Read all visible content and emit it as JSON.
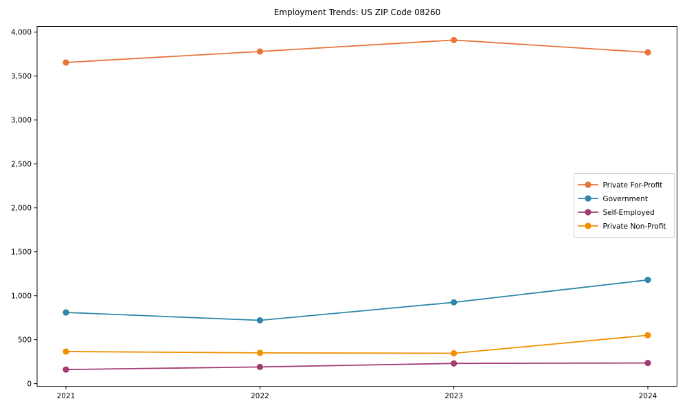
{
  "title": "Employment Trends: US ZIP Code 08260",
  "chart_data": {
    "type": "line",
    "title": "Employment Trends: US ZIP Code 08260",
    "xlabel": "",
    "ylabel": "",
    "categories": [
      "2021",
      "2022",
      "2023",
      "2024"
    ],
    "series": [
      {
        "name": "Private For-Profit",
        "color": "#e8743b",
        "values": [
          3655,
          3780,
          3910,
          3770
        ]
      },
      {
        "name": "Government",
        "color": "#2e86ab",
        "values": [
          810,
          720,
          925,
          1180
        ]
      },
      {
        "name": "Self-Employed",
        "color": "#a23b72",
        "values": [
          160,
          190,
          230,
          235
        ]
      },
      {
        "name": "Private Non-Profit",
        "color": "#f18f01",
        "values": [
          365,
          350,
          345,
          550
        ]
      }
    ],
    "y_ticks": [
      0,
      500,
      1000,
      1500,
      2000,
      2500,
      3000,
      3500,
      4000
    ],
    "y_tick_labels": [
      "0",
      "500",
      "1,000",
      "1,500",
      "2,000",
      "2,500",
      "3,000",
      "3,500",
      "4,000"
    ],
    "ylim": [
      -30,
      4065
    ],
    "grid": false,
    "marker": "o",
    "legend_position": "center right",
    "axis_color": "#000000",
    "legend_border_color": "#cccccc"
  }
}
